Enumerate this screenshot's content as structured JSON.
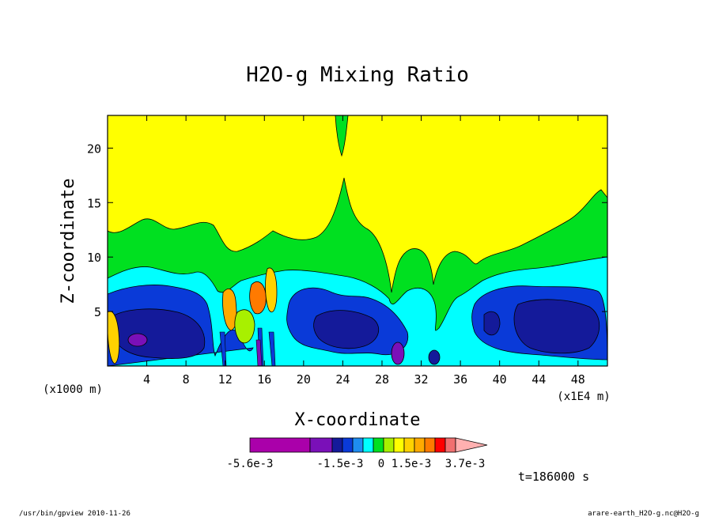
{
  "chart_data": {
    "type": "heatmap",
    "title": "H2O-g Mixing Ratio",
    "xlabel": "X-coordinate",
    "ylabel": "Z-coordinate",
    "x_scale_note": "(x1E4 m)",
    "y_scale_note": "(x1000 m)",
    "xlim": [
      0,
      51
    ],
    "ylim": [
      0,
      23
    ],
    "x_ticks": [
      4,
      8,
      12,
      16,
      20,
      24,
      28,
      32,
      36,
      40,
      44,
      48
    ],
    "y_ticks": [
      5,
      10,
      15,
      20
    ],
    "time_label": "t=186000 s",
    "colorbar": {
      "colors": [
        "#aa00aa",
        "#7a10b8",
        "#141a9a",
        "#0a3ad8",
        "#1e8cf0",
        "#00ffff",
        "#00e020",
        "#a8f000",
        "#ffff00",
        "#ffd200",
        "#ffaa00",
        "#ff7a00",
        "#ff0000",
        "#f07070",
        "#ffb0b0"
      ],
      "tick_labels": [
        "-5.6e-3",
        "-1.5e-3",
        "0",
        "1.5e-3",
        "3.7e-3"
      ]
    }
  },
  "footer": {
    "left": "/usr/bin/gpview  2010-11-26",
    "right": "arare-earth_H2O-g.nc@H2O-g"
  }
}
